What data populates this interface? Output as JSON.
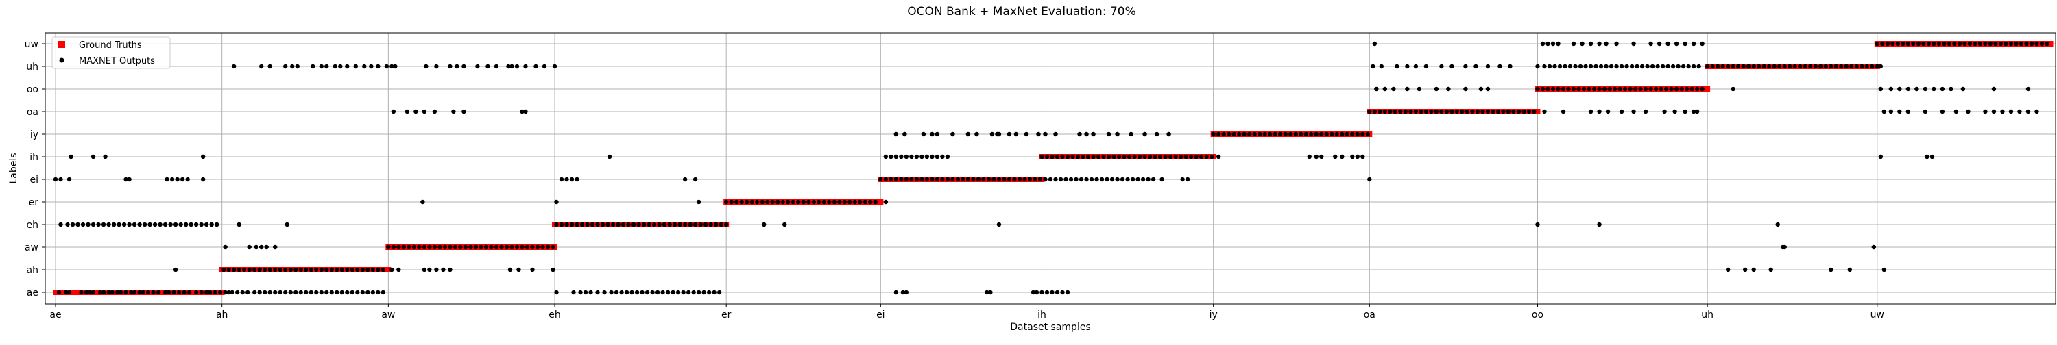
{
  "chart_data": {
    "type": "scatter",
    "title": "OCON Bank + MaxNet Evaluation: 70%",
    "xlabel": "Dataset samples",
    "ylabel": "Labels",
    "grid": true,
    "legend_placement": "top-left",
    "y_categories": [
      "ae",
      "ah",
      "aw",
      "eh",
      "er",
      "ei",
      "ih",
      "iy",
      "oa",
      "oo",
      "uh",
      "uw"
    ],
    "x_tick_labels": [
      "ae",
      "ah",
      "aw",
      "eh",
      "er",
      "ei",
      "ih",
      "iy",
      "oa",
      "oo",
      "uh",
      "uw"
    ],
    "x_tick_positions": [
      0,
      97,
      194,
      291,
      391,
      481,
      575,
      675,
      766,
      864,
      963,
      1062
    ],
    "xlim": [
      -6,
      1166
    ],
    "colors": {
      "ground_truth": "#ff0000",
      "maxnet": "#000000",
      "grid": "#b0b0b0"
    },
    "series": [
      {
        "name": "Ground Truths",
        "marker": "square",
        "segments": [
          {
            "label": "ae",
            "x_start": 0,
            "x_end": 97
          },
          {
            "label": "ah",
            "x_start": 97,
            "x_end": 194
          },
          {
            "label": "aw",
            "x_start": 194,
            "x_end": 291
          },
          {
            "label": "eh",
            "x_start": 291,
            "x_end": 391
          },
          {
            "label": "er",
            "x_start": 391,
            "x_end": 481
          },
          {
            "label": "ei",
            "x_start": 481,
            "x_end": 575
          },
          {
            "label": "ih",
            "x_start": 575,
            "x_end": 675
          },
          {
            "label": "iy",
            "x_start": 675,
            "x_end": 766
          },
          {
            "label": "oa",
            "x_start": 766,
            "x_end": 864
          },
          {
            "label": "oo",
            "x_start": 864,
            "x_end": 963
          },
          {
            "label": "uh",
            "x_start": 963,
            "x_end": 1062
          },
          {
            "label": "uw",
            "x_start": 1062,
            "x_end": 1163
          }
        ]
      },
      {
        "name": "MAXNET Outputs",
        "marker": "dot",
        "points": [
          {
            "label": "ae",
            "x": [
              2,
              6,
              8,
              15,
              18,
              20,
              22,
              26,
              28,
              31,
              33,
              36,
              38,
              41,
              44,
              46,
              49,
              51,
              54,
              57,
              60,
              64,
              66,
              69,
              72,
              75,
              78,
              82,
              85,
              88,
              90,
              93,
              96,
              99,
              101,
              103,
              106,
              109,
              112,
              116,
              119,
              122,
              125,
              128,
              131,
              134,
              137,
              140,
              143,
              146,
              149,
              152,
              155,
              158,
              161,
              164,
              167,
              170,
              173,
              176,
              179,
              182,
              185,
              188,
              191,
              292,
              302,
              306,
              309,
              312,
              316,
              320,
              324,
              327,
              330,
              333,
              336,
              339,
              342,
              345,
              348,
              351,
              354,
              357,
              360,
              363,
              366,
              369,
              372,
              375,
              378,
              381,
              384,
              387,
              490,
              494,
              496,
              543,
              545,
              570,
              572,
              575,
              578,
              581,
              584,
              587,
              590
            ]
          },
          {
            "label": "ah",
            "x": [
              70,
              98,
              101,
              104,
              107,
              110,
              113,
              116,
              119,
              122,
              125,
              128,
              131,
              134,
              137,
              140,
              143,
              146,
              149,
              152,
              155,
              158,
              161,
              164,
              167,
              170,
              173,
              176,
              179,
              182,
              185,
              188,
              191,
              196,
              200,
              215,
              218,
              222,
              226,
              230,
              265,
              270,
              278,
              290,
              975,
              985,
              990,
              1000,
              1035,
              1046,
              1066
            ]
          },
          {
            "label": "aw",
            "x": [
              99,
              113,
              117,
              120,
              123,
              128,
              194,
              197,
              200,
              203,
              206,
              209,
              212,
              215,
              218,
              221,
              224,
              227,
              230,
              233,
              236,
              239,
              242,
              245,
              248,
              251,
              254,
              257,
              260,
              263,
              266,
              269,
              272,
              275,
              278,
              281,
              284,
              287,
              290,
              1007,
              1008,
              1060
            ]
          },
          {
            "label": "eh",
            "x": [
              3,
              7,
              10,
              13,
              16,
              19,
              22,
              25,
              28,
              31,
              34,
              37,
              40,
              43,
              46,
              49,
              52,
              55,
              58,
              61,
              64,
              67,
              70,
              73,
              76,
              79,
              82,
              85,
              88,
              91,
              94,
              107,
              135,
              292,
              295,
              298,
              301,
              304,
              307,
              310,
              313,
              316,
              319,
              322,
              325,
              328,
              331,
              334,
              337,
              340,
              343,
              346,
              349,
              352,
              355,
              358,
              361,
              364,
              367,
              370,
              373,
              376,
              379,
              382,
              385,
              388,
              391,
              413,
              425,
              550,
              864,
              900,
              1004
            ]
          },
          {
            "label": "er",
            "x": [
              214,
              292,
              375,
              391,
              394,
              397,
              400,
              403,
              406,
              409,
              412,
              415,
              418,
              421,
              424,
              427,
              430,
              433,
              436,
              439,
              442,
              445,
              448,
              451,
              454,
              457,
              460,
              463,
              466,
              469,
              472,
              475,
              478,
              484
            ]
          },
          {
            "label": "ei",
            "x": [
              0,
              3,
              8,
              41,
              43,
              65,
              68,
              71,
              74,
              77,
              86,
              295,
              298,
              301,
              304,
              367,
              373,
              481,
              484,
              487,
              490,
              493,
              496,
              499,
              502,
              505,
              508,
              511,
              514,
              517,
              520,
              523,
              526,
              529,
              532,
              535,
              538,
              541,
              544,
              547,
              550,
              553,
              556,
              559,
              562,
              565,
              568,
              571,
              574,
              577,
              580,
              583,
              586,
              589,
              592,
              595,
              598,
              601,
              604,
              607,
              610,
              613,
              616,
              619,
              622,
              625,
              628,
              631,
              634,
              637,
              640,
              645,
              657,
              660,
              766
            ]
          },
          {
            "label": "ih",
            "x": [
              9,
              22,
              29,
              86,
              323,
              484,
              487,
              490,
              493,
              496,
              499,
              502,
              505,
              508,
              511,
              514,
              517,
              520,
              575,
              578,
              581,
              584,
              587,
              590,
              593,
              596,
              599,
              602,
              605,
              608,
              611,
              614,
              617,
              620,
              623,
              626,
              629,
              632,
              635,
              638,
              641,
              644,
              647,
              650,
              653,
              656,
              659,
              662,
              665,
              668,
              671,
              674,
              678,
              731,
              735,
              738,
              746,
              750,
              756,
              759,
              762,
              1064,
              1091,
              1094
            ]
          },
          {
            "label": "iy",
            "x": [
              490,
              495,
              506,
              511,
              514,
              523,
              532,
              537,
              546,
              549,
              550,
              556,
              560,
              566,
              573,
              577,
              583,
              597,
              601,
              605,
              614,
              619,
              627,
              635,
              642,
              649,
              675,
              678,
              681,
              684,
              687,
              690,
              693,
              696,
              699,
              702,
              705,
              708,
              711,
              714,
              717,
              720,
              723,
              726,
              729,
              732,
              735,
              738,
              741,
              744,
              747,
              750,
              753,
              756,
              759,
              762,
              765
            ]
          },
          {
            "label": "oa",
            "x": [
              197,
              205,
              210,
              215,
              221,
              232,
              238,
              272,
              274,
              766,
              769,
              772,
              775,
              778,
              781,
              784,
              787,
              790,
              793,
              796,
              799,
              802,
              805,
              808,
              811,
              814,
              817,
              820,
              823,
              826,
              829,
              832,
              835,
              838,
              841,
              844,
              847,
              850,
              853,
              856,
              859,
              862,
              868,
              879,
              895,
              900,
              905,
              913,
              920,
              927,
              938,
              944,
              950,
              955,
              957,
              1066,
              1070,
              1075,
              1080,
              1090,
              1100,
              1108,
              1115,
              1125,
              1130,
              1135,
              1140,
              1145,
              1150,
              1155
            ]
          },
          {
            "label": "oo",
            "x": [
              770,
              775,
              780,
              788,
              795,
              805,
              812,
              822,
              831,
              835,
              864,
              867,
              870,
              873,
              876,
              879,
              882,
              885,
              888,
              891,
              894,
              897,
              900,
              903,
              906,
              909,
              912,
              915,
              918,
              921,
              924,
              927,
              930,
              933,
              936,
              939,
              942,
              945,
              948,
              951,
              954,
              957,
              960,
              978,
              1064,
              1070,
              1075,
              1080,
              1085,
              1090,
              1095,
              1100,
              1105,
              1112,
              1130,
              1150
            ]
          },
          {
            "label": "uh",
            "x": [
              104,
              120,
              125,
              134,
              138,
              141,
              150,
              155,
              158,
              163,
              166,
              170,
              175,
              180,
              184,
              188,
              193,
              196,
              198,
              216,
              222,
              230,
              234,
              238,
              246,
              252,
              257,
              264,
              266,
              269,
              274,
              280,
              285,
              291,
              768,
              773,
              782,
              788,
              793,
              799,
              808,
              814,
              822,
              828,
              835,
              842,
              848,
              864,
              868,
              871,
              874,
              877,
              880,
              883,
              886,
              889,
              892,
              895,
              898,
              901,
              904,
              907,
              910,
              913,
              916,
              919,
              922,
              925,
              928,
              931,
              934,
              937,
              940,
              943,
              946,
              949,
              952,
              955,
              958,
              963,
              966,
              969,
              972,
              975,
              978,
              981,
              984,
              987,
              990,
              993,
              996,
              999,
              1002,
              1005,
              1008,
              1011,
              1014,
              1017,
              1020,
              1023,
              1026,
              1029,
              1032,
              1035,
              1038,
              1041,
              1044,
              1047,
              1050,
              1053,
              1056,
              1059,
              1062,
              1064
            ]
          },
          {
            "label": "uw",
            "x": [
              769,
              867,
              870,
              873,
              876,
              885,
              890,
              895,
              900,
              904,
              910,
              920,
              930,
              935,
              940,
              945,
              950,
              955,
              960,
              1062,
              1065,
              1068,
              1071,
              1074,
              1077,
              1080,
              1083,
              1086,
              1089,
              1092,
              1095,
              1098,
              1101,
              1104,
              1107,
              1110,
              1113,
              1116,
              1119,
              1122,
              1125,
              1128,
              1131,
              1134,
              1137,
              1140,
              1143,
              1146,
              1149,
              1152,
              1155,
              1158,
              1161
            ]
          }
        ]
      }
    ]
  }
}
